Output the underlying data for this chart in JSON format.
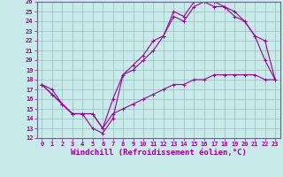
{
  "background_color": "#c8eaea",
  "line_color": "#990099",
  "grid_color": "#99bbbb",
  "xlabel": "Windchill (Refroidissement éolien,°C)",
  "xlim": [
    -0.5,
    23.5
  ],
  "ylim": [
    12,
    26
  ],
  "xticks": [
    0,
    1,
    2,
    3,
    4,
    5,
    6,
    7,
    8,
    9,
    10,
    11,
    12,
    13,
    14,
    15,
    16,
    17,
    18,
    19,
    20,
    21,
    22,
    23
  ],
  "yticks": [
    12,
    13,
    14,
    15,
    16,
    17,
    18,
    19,
    20,
    21,
    22,
    23,
    24,
    25,
    26
  ],
  "line1_x": [
    0,
    1,
    2,
    3,
    4,
    5,
    6,
    7,
    8,
    9,
    10,
    11,
    12,
    13,
    14,
    15,
    16,
    17,
    18,
    19,
    20,
    21,
    22,
    23
  ],
  "line1_y": [
    17.5,
    17.0,
    15.5,
    14.5,
    14.5,
    13.0,
    12.5,
    14.0,
    18.5,
    19.5,
    20.5,
    22.0,
    22.5,
    25.0,
    24.5,
    26.0,
    26.5,
    26.0,
    25.5,
    25.0,
    24.0,
    22.5,
    20.0,
    18.0
  ],
  "line2_x": [
    0,
    1,
    2,
    3,
    4,
    5,
    6,
    7,
    8,
    9,
    10,
    11,
    12,
    13,
    14,
    15,
    16,
    17,
    18,
    19,
    20,
    21,
    22,
    23
  ],
  "line2_y": [
    17.5,
    16.5,
    15.5,
    14.5,
    14.5,
    14.5,
    13.0,
    16.0,
    18.5,
    19.0,
    20.0,
    21.0,
    22.5,
    24.5,
    24.0,
    25.5,
    26.0,
    25.5,
    25.5,
    24.5,
    24.0,
    22.5,
    22.0,
    18.0
  ],
  "line3_x": [
    0,
    1,
    2,
    3,
    4,
    5,
    6,
    7,
    8,
    9,
    10,
    11,
    12,
    13,
    14,
    15,
    16,
    17,
    18,
    19,
    20,
    21,
    22,
    23
  ],
  "line3_y": [
    17.5,
    16.5,
    15.5,
    14.5,
    14.5,
    14.5,
    13.0,
    14.5,
    15.0,
    15.5,
    16.0,
    16.5,
    17.0,
    17.5,
    17.5,
    18.0,
    18.0,
    18.5,
    18.5,
    18.5,
    18.5,
    18.5,
    18.0,
    18.0
  ],
  "marker": "+",
  "marker_size": 3,
  "line_width": 0.8,
  "tick_fontsize": 5,
  "xlabel_fontsize": 6.5
}
